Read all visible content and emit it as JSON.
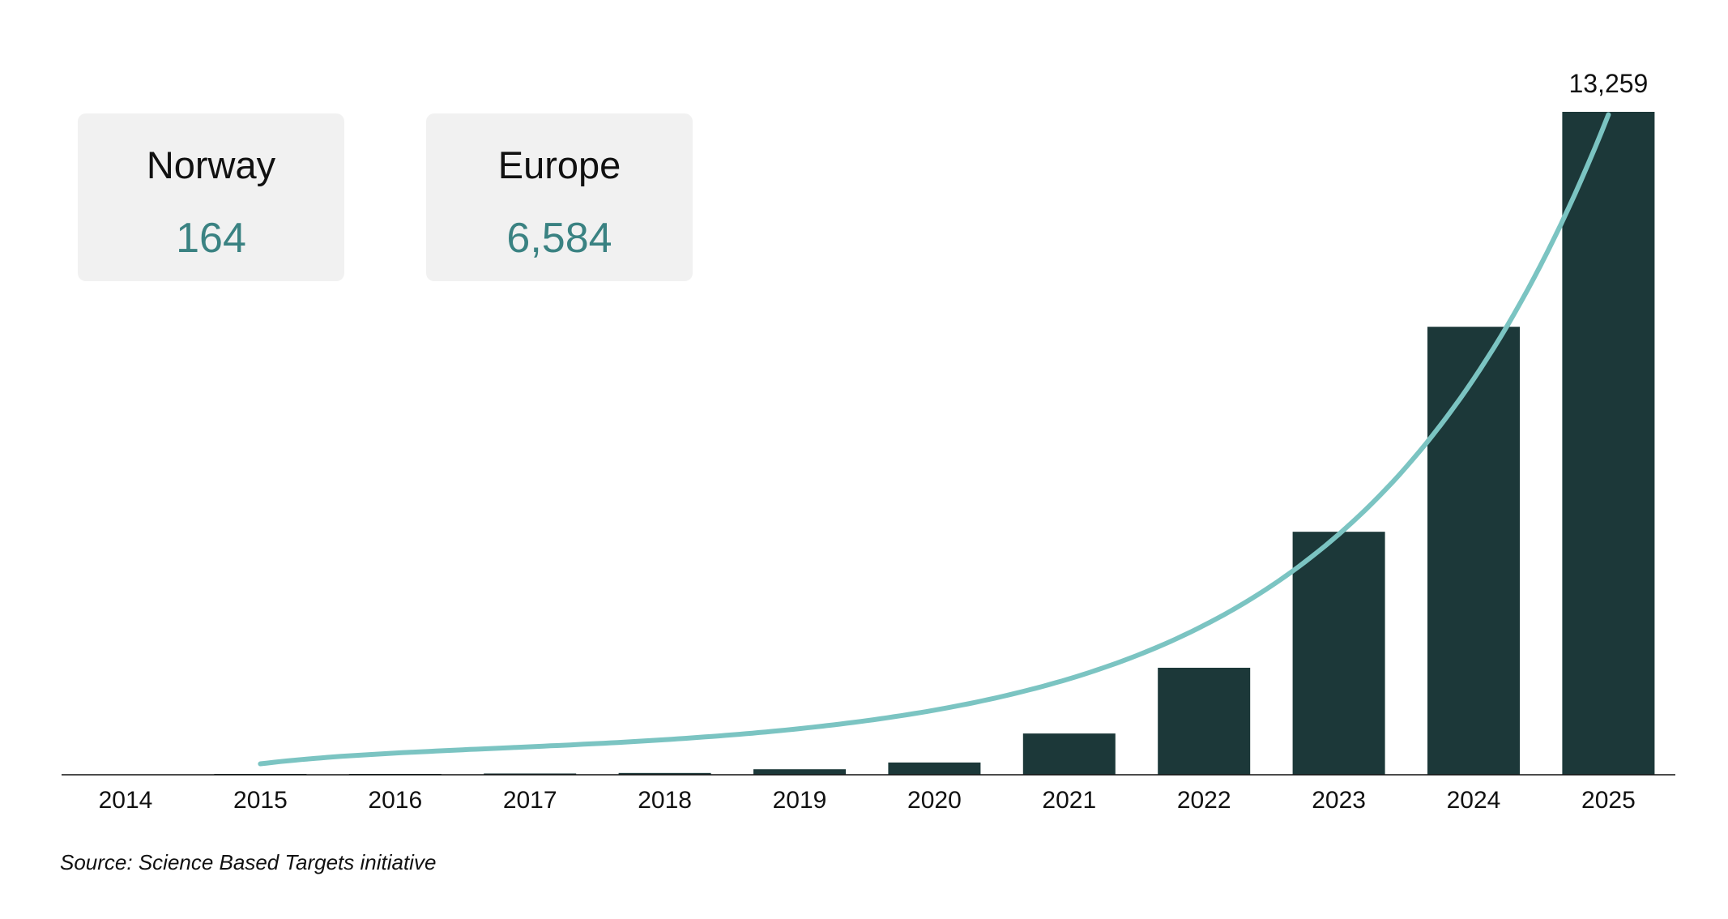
{
  "cards": [
    {
      "title": "Norway",
      "value": "164"
    },
    {
      "title": "Europe",
      "value": "6,584"
    }
  ],
  "source": "Source: Science Based Targets initiative",
  "colors": {
    "bar": "#1c3839",
    "trend": "#7bc4c2",
    "card_bg": "#f1f1f1",
    "card_value": "#3a8282"
  },
  "chart_data": {
    "type": "bar",
    "categories": [
      "2014",
      "2015",
      "2016",
      "2017",
      "2018",
      "2019",
      "2020",
      "2021",
      "2022",
      "2023",
      "2024",
      "2025"
    ],
    "values": [
      0,
      5,
      15,
      25,
      35,
      110,
      245,
      825,
      2140,
      4860,
      8960,
      13259
    ],
    "data_labels": [
      {
        "category": "2025",
        "text": "13,259"
      }
    ],
    "trendline": {
      "type": "exponential",
      "from": "2015",
      "to": "2025"
    },
    "title": "",
    "xlabel": "",
    "ylabel": "",
    "ylim": [
      0,
      13259
    ],
    "grid": false,
    "y_axis_visible": false
  }
}
